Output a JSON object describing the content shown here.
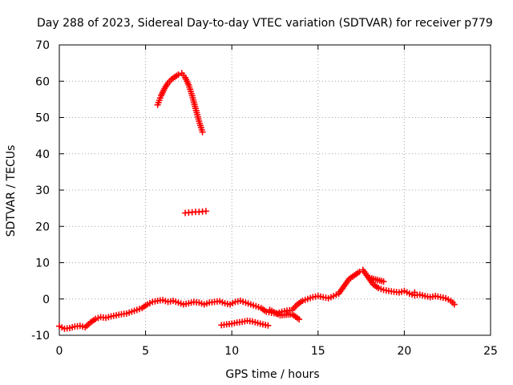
{
  "chart_data": {
    "type": "scatter",
    "title": "Day 288 of 2023, Sidereal Day-to-day VTEC variation (SDTVAR) for receiver p779",
    "xlabel": "GPS time / hours",
    "ylabel": "SDTVAR / TECUs",
    "xlim": [
      0,
      25
    ],
    "ylim": [
      -10,
      70
    ],
    "xticks": [
      "0",
      "5",
      "10",
      "15",
      "20",
      "25"
    ],
    "yticks": [
      "-10",
      "0",
      "10",
      "20",
      "30",
      "40",
      "50",
      "60",
      "70"
    ],
    "grid": true,
    "marker": "+",
    "color": "#ff0000",
    "series": [
      {
        "name": "main",
        "x": [
          0.0,
          0.3,
          0.6,
          0.9,
          1.2,
          1.5,
          1.8,
          2.1,
          2.4,
          2.7,
          3.0,
          3.3,
          3.6,
          3.9,
          4.2,
          4.5,
          4.8,
          5.1,
          5.4,
          5.7,
          6.0,
          6.3,
          6.6,
          6.9,
          7.2,
          7.5,
          7.8,
          8.1,
          8.4,
          8.7,
          9.0,
          9.3,
          9.6,
          9.9,
          10.2,
          10.5,
          10.8,
          11.1,
          11.4,
          11.7,
          12.0,
          12.3,
          12.6,
          12.9,
          13.2,
          13.5,
          13.8,
          14.1,
          14.4,
          14.7,
          15.0,
          15.3,
          15.6,
          15.9,
          16.2,
          16.5,
          16.8,
          17.1,
          17.4,
          17.6,
          17.9,
          18.2,
          18.5,
          18.8,
          19.1,
          19.4,
          19.7,
          20.0,
          20.3,
          20.6,
          20.9,
          21.2,
          21.5,
          21.8,
          22.1,
          22.4,
          22.7,
          22.9
        ],
        "y": [
          -7.5,
          -8.2,
          -8.0,
          -7.6,
          -7.4,
          -7.8,
          -6.5,
          -5.5,
          -5.0,
          -5.2,
          -4.8,
          -4.5,
          -4.2,
          -4.0,
          -3.5,
          -3.0,
          -2.5,
          -1.5,
          -0.8,
          -0.5,
          -0.3,
          -0.8,
          -0.5,
          -1.0,
          -1.5,
          -1.2,
          -0.8,
          -1.0,
          -1.5,
          -1.0,
          -0.8,
          -0.6,
          -1.2,
          -1.5,
          -0.8,
          -0.5,
          -1.0,
          -1.5,
          -2.0,
          -2.5,
          -3.5,
          -3.8,
          -4.0,
          -3.5,
          -3.2,
          -3.0,
          -1.5,
          -0.5,
          0.0,
          0.5,
          0.8,
          0.5,
          0.2,
          0.8,
          1.5,
          3.5,
          5.5,
          6.5,
          7.5,
          8.0,
          6.0,
          4.0,
          3.0,
          2.5,
          2.2,
          2.0,
          1.8,
          2.2,
          1.5,
          1.0,
          1.2,
          0.8,
          0.5,
          0.8,
          0.5,
          0.2,
          -0.5,
          -1.5
        ]
      },
      {
        "name": "peak",
        "x": [
          5.7,
          5.9,
          6.1,
          6.3,
          6.5,
          6.7,
          6.9,
          7.1,
          7.3,
          7.5,
          7.7,
          7.9,
          8.1,
          8.3
        ],
        "y": [
          53.5,
          56.0,
          58.0,
          59.5,
          60.5,
          61.2,
          61.8,
          62.2,
          61.0,
          59.0,
          56.0,
          52.5,
          49.0,
          46.0
        ]
      },
      {
        "name": "mid",
        "x": [
          7.3,
          7.5,
          7.7,
          7.9,
          8.1,
          8.3,
          8.5
        ],
        "y": [
          23.7,
          23.8,
          23.9,
          24.0,
          24.0,
          24.1,
          24.2
        ]
      },
      {
        "name": "lower",
        "x": [
          9.4,
          9.7,
          10.0,
          10.3,
          10.6,
          10.9,
          11.2,
          11.5,
          11.8,
          12.1
        ],
        "y": [
          -7.2,
          -7.0,
          -6.8,
          -6.5,
          -6.3,
          -6.0,
          -6.2,
          -6.6,
          -7.0,
          -7.3
        ]
      },
      {
        "name": "scatter-pts",
        "x": [
          12.2,
          12.8,
          13.5,
          13.9,
          18.0,
          18.8,
          20.6
        ],
        "y": [
          -3.0,
          -4.5,
          -4.2,
          -5.6,
          5.8,
          4.8,
          1.8
        ]
      }
    ]
  }
}
